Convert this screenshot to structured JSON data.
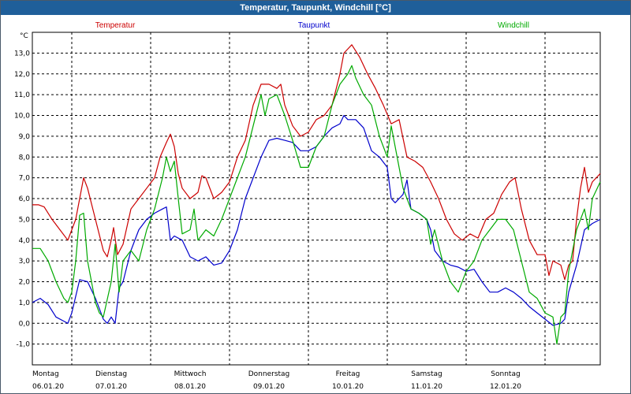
{
  "chart_data": {
    "type": "line",
    "title": "Temperatur, Taupunkt, Windchill [°C]",
    "ylabel": "°C",
    "ylim": [
      -2,
      14
    ],
    "yticks": [
      -1,
      0,
      1,
      2,
      3,
      4,
      5,
      6,
      7,
      8,
      9,
      10,
      11,
      12,
      13
    ],
    "ytick_labels": [
      "-1,0",
      "0,0",
      "1,0",
      "2,0",
      "3,0",
      "4,0",
      "5,0",
      "6,0",
      "7,0",
      "8,0",
      "9,0",
      "10,0",
      "11,0",
      "12,0",
      "13,0"
    ],
    "xlim": [
      0,
      7.2
    ],
    "xticks": [
      {
        "x": 0,
        "day": "Montag",
        "date": "06.01.20"
      },
      {
        "x": 1,
        "day": "Dienstag",
        "date": "07.01.20"
      },
      {
        "x": 2,
        "day": "Mittwoch",
        "date": "08.01.20"
      },
      {
        "x": 3,
        "day": "Donnerstag",
        "date": "09.01.20"
      },
      {
        "x": 4,
        "day": "Freitag",
        "date": "10.01.20"
      },
      {
        "x": 5,
        "day": "Samstag",
        "date": "11.01.20"
      },
      {
        "x": 6,
        "day": "Sonntag",
        "date": "12.01.20"
      }
    ],
    "grid": true,
    "series": [
      {
        "name": "Temperatur",
        "color": "#cc0000",
        "points": [
          [
            0,
            5.7
          ],
          [
            0.08,
            5.7
          ],
          [
            0.15,
            5.6
          ],
          [
            0.25,
            5.0
          ],
          [
            0.35,
            4.5
          ],
          [
            0.45,
            4.0
          ],
          [
            0.55,
            5.0
          ],
          [
            0.6,
            6.0
          ],
          [
            0.65,
            7.0
          ],
          [
            0.7,
            6.5
          ],
          [
            0.8,
            5.0
          ],
          [
            0.9,
            3.5
          ],
          [
            0.95,
            3.2
          ],
          [
            1.0,
            4.0
          ],
          [
            1.03,
            4.6
          ],
          [
            1.08,
            3.3
          ],
          [
            1.15,
            3.8
          ],
          [
            1.25,
            5.5
          ],
          [
            1.35,
            6.0
          ],
          [
            1.45,
            6.5
          ],
          [
            1.55,
            7.0
          ],
          [
            1.62,
            8.0
          ],
          [
            1.7,
            8.7
          ],
          [
            1.75,
            9.1
          ],
          [
            1.8,
            8.5
          ],
          [
            1.85,
            7.2
          ],
          [
            1.9,
            6.5
          ],
          [
            2.0,
            6.0
          ],
          [
            2.1,
            6.3
          ],
          [
            2.15,
            7.1
          ],
          [
            2.2,
            7.0
          ],
          [
            2.3,
            6.0
          ],
          [
            2.4,
            6.3
          ],
          [
            2.5,
            6.8
          ],
          [
            2.6,
            8.0
          ],
          [
            2.7,
            8.8
          ],
          [
            2.8,
            10.5
          ],
          [
            2.9,
            11.5
          ],
          [
            3.0,
            11.5
          ],
          [
            3.1,
            11.3
          ],
          [
            3.15,
            11.5
          ],
          [
            3.2,
            10.5
          ],
          [
            3.3,
            9.5
          ],
          [
            3.4,
            9.0
          ],
          [
            3.5,
            9.2
          ],
          [
            3.6,
            9.8
          ],
          [
            3.7,
            10.0
          ],
          [
            3.8,
            10.5
          ],
          [
            3.9,
            12.0
          ],
          [
            3.95,
            13.0
          ],
          [
            4.0,
            13.2
          ],
          [
            4.05,
            13.4
          ],
          [
            4.15,
            12.8
          ],
          [
            4.25,
            12.0
          ],
          [
            4.35,
            11.3
          ],
          [
            4.45,
            10.5
          ],
          [
            4.55,
            9.6
          ],
          [
            4.65,
            9.8
          ],
          [
            4.75,
            8.0
          ],
          [
            4.85,
            7.8
          ],
          [
            4.95,
            7.5
          ],
          [
            5.05,
            6.8
          ],
          [
            5.15,
            6.0
          ],
          [
            5.25,
            5.0
          ],
          [
            5.35,
            4.3
          ],
          [
            5.45,
            4.0
          ],
          [
            5.55,
            4.3
          ],
          [
            5.65,
            4.1
          ],
          [
            5.75,
            5.0
          ],
          [
            5.85,
            5.3
          ],
          [
            5.95,
            6.2
          ],
          [
            6.05,
            6.8
          ],
          [
            6.12,
            7.0
          ],
          [
            6.2,
            5.5
          ],
          [
            6.3,
            4.0
          ],
          [
            6.4,
            3.3
          ],
          [
            6.5,
            3.3
          ],
          [
            6.55,
            2.3
          ],
          [
            6.6,
            3.0
          ],
          [
            6.7,
            2.8
          ],
          [
            6.75,
            2.1
          ],
          [
            6.8,
            2.8
          ],
          [
            6.85,
            3.0
          ],
          [
            6.9,
            5.0
          ],
          [
            6.95,
            6.5
          ],
          [
            7.0,
            7.5
          ],
          [
            7.05,
            6.3
          ],
          [
            7.1,
            6.8
          ],
          [
            7.15,
            7.0
          ],
          [
            7.2,
            7.2
          ]
        ]
      },
      {
        "name": "Taupunkt",
        "color": "#0000cc",
        "points": [
          [
            0,
            1.0
          ],
          [
            0.1,
            1.2
          ],
          [
            0.2,
            0.9
          ],
          [
            0.3,
            0.3
          ],
          [
            0.4,
            0.1
          ],
          [
            0.45,
            0.0
          ],
          [
            0.5,
            0.5
          ],
          [
            0.6,
            2.1
          ],
          [
            0.7,
            2.0
          ],
          [
            0.8,
            1.2
          ],
          [
            0.9,
            0.2
          ],
          [
            0.95,
            0.0
          ],
          [
            1.0,
            0.3
          ],
          [
            1.05,
            0.0
          ],
          [
            1.1,
            1.7
          ],
          [
            1.15,
            2.0
          ],
          [
            1.25,
            3.5
          ],
          [
            1.35,
            4.5
          ],
          [
            1.45,
            5.0
          ],
          [
            1.55,
            5.3
          ],
          [
            1.65,
            5.5
          ],
          [
            1.7,
            5.6
          ],
          [
            1.75,
            4.0
          ],
          [
            1.8,
            4.2
          ],
          [
            1.9,
            4.0
          ],
          [
            2.0,
            3.2
          ],
          [
            2.1,
            3.0
          ],
          [
            2.2,
            3.2
          ],
          [
            2.3,
            2.8
          ],
          [
            2.4,
            2.9
          ],
          [
            2.5,
            3.5
          ],
          [
            2.6,
            4.5
          ],
          [
            2.7,
            6.0
          ],
          [
            2.8,
            7.0
          ],
          [
            2.9,
            8.0
          ],
          [
            3.0,
            8.8
          ],
          [
            3.1,
            8.9
          ],
          [
            3.2,
            8.8
          ],
          [
            3.3,
            8.7
          ],
          [
            3.4,
            8.3
          ],
          [
            3.5,
            8.3
          ],
          [
            3.6,
            8.5
          ],
          [
            3.7,
            9.0
          ],
          [
            3.8,
            9.4
          ],
          [
            3.9,
            9.6
          ],
          [
            3.95,
            10.0
          ],
          [
            4.0,
            9.8
          ],
          [
            4.1,
            9.8
          ],
          [
            4.2,
            9.4
          ],
          [
            4.3,
            8.3
          ],
          [
            4.4,
            8.0
          ],
          [
            4.5,
            7.5
          ],
          [
            4.55,
            6.0
          ],
          [
            4.6,
            5.8
          ],
          [
            4.7,
            6.2
          ],
          [
            4.75,
            6.9
          ],
          [
            4.8,
            5.5
          ],
          [
            4.9,
            5.3
          ],
          [
            5.0,
            5.0
          ],
          [
            5.05,
            4.5
          ],
          [
            5.1,
            3.5
          ],
          [
            5.2,
            3.0
          ],
          [
            5.3,
            2.8
          ],
          [
            5.4,
            2.7
          ],
          [
            5.5,
            2.5
          ],
          [
            5.6,
            2.6
          ],
          [
            5.7,
            2.0
          ],
          [
            5.8,
            1.5
          ],
          [
            5.9,
            1.5
          ],
          [
            6.0,
            1.7
          ],
          [
            6.1,
            1.5
          ],
          [
            6.2,
            1.2
          ],
          [
            6.3,
            0.8
          ],
          [
            6.4,
            0.5
          ],
          [
            6.5,
            0.2
          ],
          [
            6.6,
            -0.1
          ],
          [
            6.7,
            0.0
          ],
          [
            6.75,
            0.2
          ],
          [
            6.8,
            1.5
          ],
          [
            6.9,
            2.8
          ],
          [
            7.0,
            4.5
          ],
          [
            7.1,
            4.8
          ],
          [
            7.2,
            5.0
          ]
        ]
      },
      {
        "name": "Windchill",
        "color": "#00aa00",
        "points": [
          [
            0,
            3.6
          ],
          [
            0.1,
            3.6
          ],
          [
            0.2,
            3.0
          ],
          [
            0.3,
            2.0
          ],
          [
            0.4,
            1.2
          ],
          [
            0.45,
            1.0
          ],
          [
            0.5,
            1.5
          ],
          [
            0.55,
            3.0
          ],
          [
            0.6,
            5.2
          ],
          [
            0.65,
            5.3
          ],
          [
            0.7,
            3.0
          ],
          [
            0.8,
            1.0
          ],
          [
            0.85,
            0.5
          ],
          [
            0.9,
            0.3
          ],
          [
            1.0,
            2.0
          ],
          [
            1.05,
            3.8
          ],
          [
            1.1,
            1.5
          ],
          [
            1.15,
            3.0
          ],
          [
            1.25,
            3.5
          ],
          [
            1.35,
            3.0
          ],
          [
            1.45,
            4.5
          ],
          [
            1.55,
            5.5
          ],
          [
            1.65,
            7.0
          ],
          [
            1.7,
            8.0
          ],
          [
            1.75,
            7.3
          ],
          [
            1.8,
            7.8
          ],
          [
            1.85,
            6.0
          ],
          [
            1.9,
            4.3
          ],
          [
            2.0,
            4.5
          ],
          [
            2.05,
            5.5
          ],
          [
            2.1,
            4.0
          ],
          [
            2.2,
            4.5
          ],
          [
            2.3,
            4.2
          ],
          [
            2.4,
            5.0
          ],
          [
            2.5,
            6.0
          ],
          [
            2.6,
            7.0
          ],
          [
            2.7,
            8.0
          ],
          [
            2.8,
            9.5
          ],
          [
            2.9,
            11.0
          ],
          [
            2.95,
            10.0
          ],
          [
            3.0,
            10.8
          ],
          [
            3.1,
            11.0
          ],
          [
            3.2,
            10.0
          ],
          [
            3.3,
            8.8
          ],
          [
            3.4,
            7.5
          ],
          [
            3.5,
            7.5
          ],
          [
            3.6,
            8.5
          ],
          [
            3.7,
            9.0
          ],
          [
            3.8,
            10.5
          ],
          [
            3.9,
            11.5
          ],
          [
            4.0,
            12.0
          ],
          [
            4.05,
            12.4
          ],
          [
            4.1,
            11.8
          ],
          [
            4.2,
            11.0
          ],
          [
            4.3,
            10.5
          ],
          [
            4.4,
            9.0
          ],
          [
            4.5,
            8.0
          ],
          [
            4.55,
            9.5
          ],
          [
            4.6,
            8.5
          ],
          [
            4.7,
            6.5
          ],
          [
            4.8,
            5.5
          ],
          [
            4.9,
            5.3
          ],
          [
            5.0,
            5.0
          ],
          [
            5.05,
            3.8
          ],
          [
            5.1,
            4.5
          ],
          [
            5.2,
            3.0
          ],
          [
            5.3,
            2.0
          ],
          [
            5.4,
            1.5
          ],
          [
            5.5,
            2.5
          ],
          [
            5.6,
            3.0
          ],
          [
            5.7,
            4.0
          ],
          [
            5.8,
            4.5
          ],
          [
            5.9,
            5.0
          ],
          [
            6.0,
            5.0
          ],
          [
            6.1,
            4.5
          ],
          [
            6.2,
            3.0
          ],
          [
            6.3,
            1.5
          ],
          [
            6.4,
            1.2
          ],
          [
            6.5,
            0.5
          ],
          [
            6.6,
            0.3
          ],
          [
            6.65,
            -1.0
          ],
          [
            6.7,
            0.3
          ],
          [
            6.75,
            0.5
          ],
          [
            6.8,
            2.5
          ],
          [
            6.9,
            4.5
          ],
          [
            7.0,
            5.5
          ],
          [
            7.05,
            4.5
          ],
          [
            7.1,
            6.0
          ],
          [
            7.2,
            6.8
          ]
        ]
      }
    ]
  }
}
